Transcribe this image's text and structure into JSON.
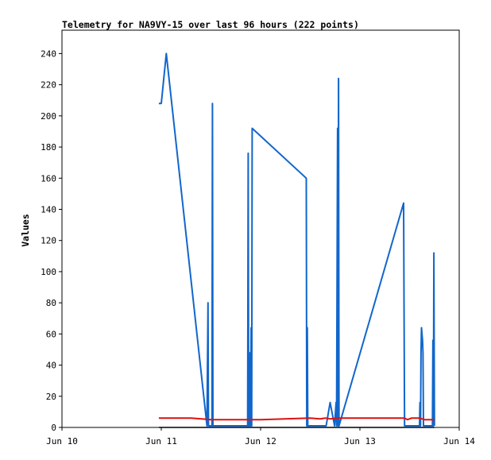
{
  "chart_data": {
    "type": "line",
    "title": "Telemetry for NA9VY-15 over last 96 hours (222 points)",
    "xlabel": "",
    "ylabel": "Values",
    "x_tick_labels": [
      "Jun 10",
      "Jun 11",
      "Jun 12",
      "Jun 13",
      "Jun 14"
    ],
    "xlim": [
      10.0,
      14.0
    ],
    "ylim": [
      0,
      255
    ],
    "y_ticks": [
      0,
      20,
      40,
      60,
      80,
      100,
      120,
      140,
      160,
      180,
      200,
      220,
      240
    ],
    "grid": false,
    "legend": "none",
    "series": [
      {
        "color": "#1166cc",
        "points": [
          [
            10.975,
            208
          ],
          [
            11.0,
            208
          ],
          [
            11.05,
            240
          ],
          [
            11.46,
            1
          ],
          [
            11.47,
            80
          ],
          [
            11.475,
            1
          ],
          [
            11.51,
            1
          ],
          [
            11.515,
            208
          ],
          [
            11.52,
            1
          ],
          [
            11.87,
            1
          ],
          [
            11.875,
            176
          ],
          [
            11.88,
            1
          ],
          [
            11.885,
            32
          ],
          [
            11.89,
            1
          ],
          [
            11.895,
            48
          ],
          [
            11.9,
            1
          ],
          [
            11.905,
            64
          ],
          [
            11.91,
            1
          ],
          [
            11.915,
            192
          ],
          [
            12.46,
            160
          ],
          [
            12.465,
            1
          ],
          [
            12.47,
            64
          ],
          [
            12.475,
            1
          ],
          [
            12.66,
            1
          ],
          [
            12.7,
            16
          ],
          [
            12.745,
            1
          ],
          [
            12.76,
            16
          ],
          [
            12.765,
            1
          ],
          [
            12.775,
            192
          ],
          [
            12.78,
            1
          ],
          [
            12.785,
            224
          ],
          [
            12.79,
            1
          ],
          [
            13.44,
            144
          ],
          [
            13.445,
            72
          ],
          [
            13.45,
            1
          ],
          [
            13.6,
            1
          ],
          [
            13.605,
            16
          ],
          [
            13.61,
            1
          ],
          [
            13.615,
            48
          ],
          [
            13.62,
            64
          ],
          [
            13.63,
            56
          ],
          [
            13.635,
            48
          ],
          [
            13.64,
            1
          ],
          [
            13.73,
            1
          ],
          [
            13.735,
            56
          ],
          [
            13.74,
            1
          ],
          [
            13.745,
            112
          ],
          [
            13.75,
            1
          ]
        ]
      },
      {
        "color": "#dd1111",
        "points": [
          [
            10.975,
            6
          ],
          [
            11.3,
            6
          ],
          [
            11.5,
            5
          ],
          [
            12.0,
            5
          ],
          [
            12.5,
            6
          ],
          [
            12.6,
            5.5
          ],
          [
            12.65,
            6
          ],
          [
            12.7,
            5.5
          ],
          [
            12.78,
            6
          ],
          [
            13.0,
            6
          ],
          [
            13.3,
            6
          ],
          [
            13.45,
            6
          ],
          [
            13.48,
            5
          ],
          [
            13.52,
            6
          ],
          [
            13.6,
            6
          ],
          [
            13.65,
            5
          ],
          [
            13.75,
            5
          ]
        ]
      },
      {
        "color": "#000000",
        "points": [
          [
            10.975,
            0
          ],
          [
            13.75,
            0
          ]
        ]
      }
    ]
  }
}
